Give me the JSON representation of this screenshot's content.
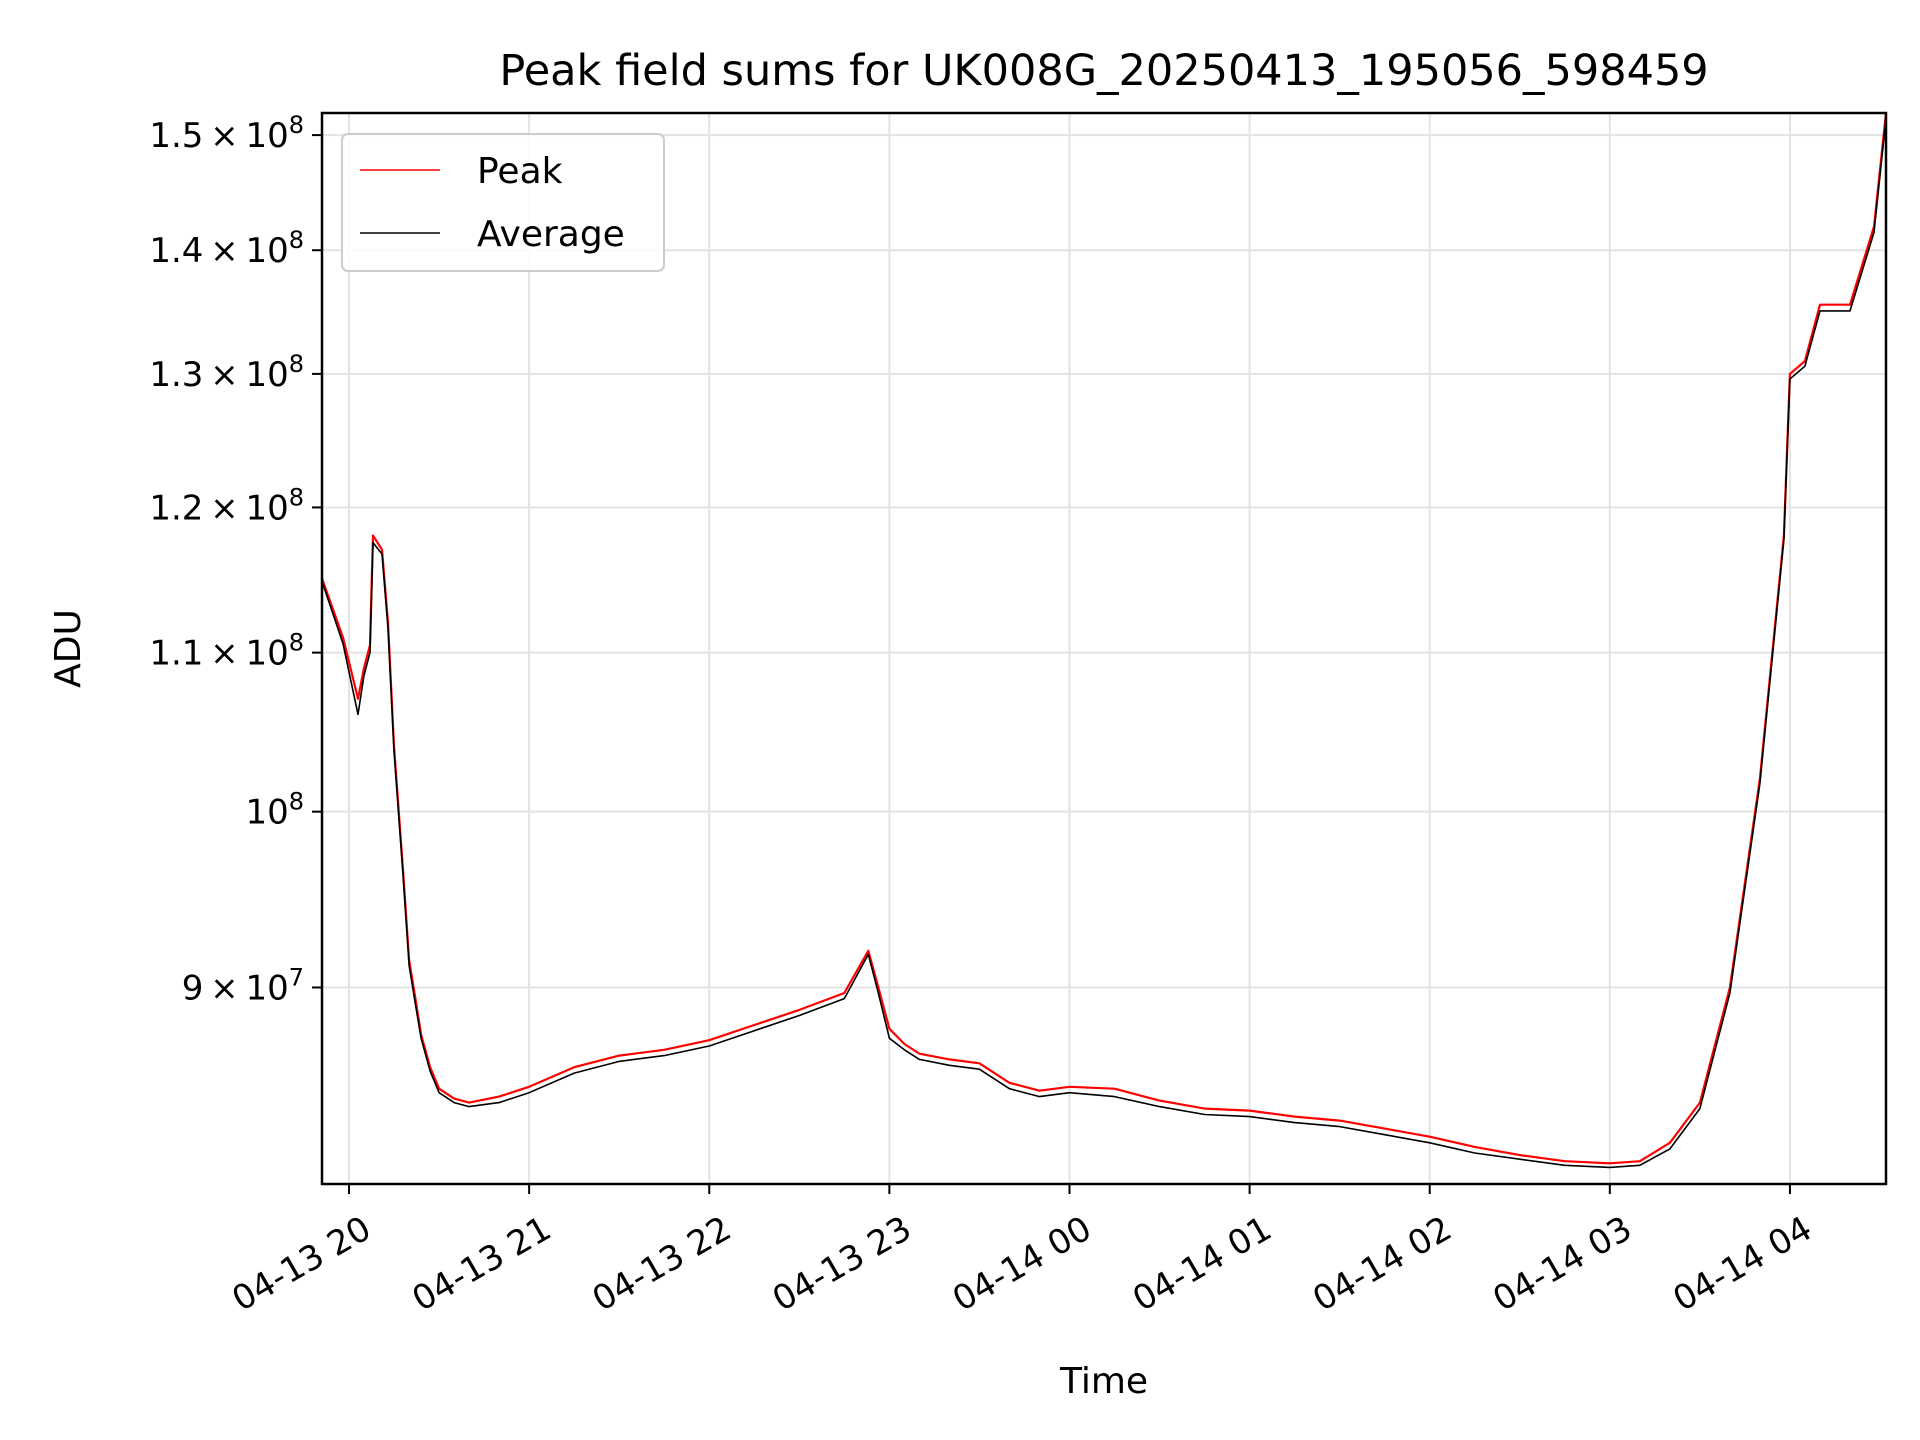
{
  "chart_data": {
    "type": "line",
    "title": "Peak field sums for UK008G_20250413_195056_598459",
    "xlabel": "Time",
    "ylabel": "ADU",
    "x_axis": {
      "kind": "time",
      "range": [
        "2025-04-13 19:51",
        "2025-04-14 04:32"
      ],
      "tick_labels": [
        "04-13 20",
        "04-13 21",
        "04-13 22",
        "04-13 23",
        "04-14 00",
        "04-14 01",
        "04-14 02",
        "04-14 03",
        "04-14 04"
      ],
      "ticks": [
        "2025-04-13 20:00",
        "2025-04-13 21:00",
        "2025-04-13 22:00",
        "2025-04-13 23:00",
        "2025-04-14 00:00",
        "2025-04-14 01:00",
        "2025-04-14 02:00",
        "2025-04-14 03:00",
        "2025-04-14 04:00"
      ]
    },
    "y_axis": {
      "scale": "log",
      "ylim": [
        80000000,
        152000000
      ],
      "ticks": [
        {
          "value": 90000000,
          "mantissa": "9",
          "times": "×",
          "base": "10",
          "exp": "7"
        },
        {
          "value": 100000000,
          "mantissa": "",
          "times": "",
          "base": "10",
          "exp": "8"
        },
        {
          "value": 110000000,
          "mantissa": "1.1",
          "times": "×",
          "base": "10",
          "exp": "8"
        },
        {
          "value": 120000000,
          "mantissa": "1.2",
          "times": "×",
          "base": "10",
          "exp": "8"
        },
        {
          "value": 130000000,
          "mantissa": "1.3",
          "times": "×",
          "base": "10",
          "exp": "8"
        },
        {
          "value": 140000000,
          "mantissa": "1.4",
          "times": "×",
          "base": "10",
          "exp": "8"
        },
        {
          "value": 150000000,
          "mantissa": "1.5",
          "times": "×",
          "base": "10",
          "exp": "8"
        }
      ]
    },
    "grid": true,
    "legend": {
      "placement": "top-left"
    },
    "series": [
      {
        "name": "Peak",
        "color": "#ff0000",
        "x": [
          "2025-04-13 19:51",
          "2025-04-13 19:58",
          "2025-04-13 20:03",
          "2025-04-13 20:05",
          "2025-04-13 20:07",
          "2025-04-13 20:08",
          "2025-04-13 20:11",
          "2025-04-13 20:13",
          "2025-04-13 20:15",
          "2025-04-13 20:18",
          "2025-04-13 20:20",
          "2025-04-13 20:22",
          "2025-04-13 20:24",
          "2025-04-13 20:27",
          "2025-04-13 20:30",
          "2025-04-13 20:35",
          "2025-04-13 20:40",
          "2025-04-13 20:50",
          "2025-04-13 21:00",
          "2025-04-13 21:15",
          "2025-04-13 21:30",
          "2025-04-13 21:45",
          "2025-04-13 22:00",
          "2025-04-13 22:15",
          "2025-04-13 22:30",
          "2025-04-13 22:45",
          "2025-04-13 22:53",
          "2025-04-13 22:56",
          "2025-04-13 23:00",
          "2025-04-13 23:05",
          "2025-04-13 23:10",
          "2025-04-13 23:20",
          "2025-04-13 23:30",
          "2025-04-13 23:40",
          "2025-04-13 23:50",
          "2025-04-14 00:00",
          "2025-04-14 00:15",
          "2025-04-14 00:30",
          "2025-04-14 00:45",
          "2025-04-14 01:00",
          "2025-04-14 01:15",
          "2025-04-14 01:30",
          "2025-04-14 01:45",
          "2025-04-14 02:00",
          "2025-04-14 02:15",
          "2025-04-14 02:30",
          "2025-04-14 02:45",
          "2025-04-14 03:00",
          "2025-04-14 03:10",
          "2025-04-14 03:20",
          "2025-04-14 03:30",
          "2025-04-14 03:40",
          "2025-04-14 03:50",
          "2025-04-14 03:58",
          "2025-04-14 04:00",
          "2025-04-14 04:05",
          "2025-04-14 04:10",
          "2025-04-14 04:20",
          "2025-04-14 04:28",
          "2025-04-14 04:32"
        ],
        "values": [
          115000000,
          111000000,
          107000000,
          109000000,
          110500000,
          118000000,
          117000000,
          112000000,
          104000000,
          96500000,
          91500000,
          89500000,
          87500000,
          85800000,
          84700000,
          84200000,
          84000000,
          84300000,
          84800000,
          85800000,
          86400000,
          86700000,
          87200000,
          88000000,
          88800000,
          89700000,
          92000000,
          90200000,
          87800000,
          87000000,
          86500000,
          86200000,
          86000000,
          85000000,
          84600000,
          84800000,
          84700000,
          84100000,
          83700000,
          83600000,
          83300000,
          83100000,
          82700000,
          82300000,
          81800000,
          81400000,
          81100000,
          81000000,
          81100000,
          82000000,
          84000000,
          90000000,
          102000000,
          118000000,
          130000000,
          131000000,
          135500000,
          135500000,
          142000000,
          152000000
        ]
      },
      {
        "name": "Average",
        "color": "#000000",
        "x": [
          "2025-04-13 19:51",
          "2025-04-13 19:58",
          "2025-04-13 20:03",
          "2025-04-13 20:05",
          "2025-04-13 20:07",
          "2025-04-13 20:08",
          "2025-04-13 20:11",
          "2025-04-13 20:13",
          "2025-04-13 20:15",
          "2025-04-13 20:18",
          "2025-04-13 20:20",
          "2025-04-13 20:22",
          "2025-04-13 20:24",
          "2025-04-13 20:27",
          "2025-04-13 20:30",
          "2025-04-13 20:35",
          "2025-04-13 20:40",
          "2025-04-13 20:50",
          "2025-04-13 21:00",
          "2025-04-13 21:15",
          "2025-04-13 21:30",
          "2025-04-13 21:45",
          "2025-04-13 22:00",
          "2025-04-13 22:15",
          "2025-04-13 22:30",
          "2025-04-13 22:45",
          "2025-04-13 22:53",
          "2025-04-13 22:56",
          "2025-04-13 23:00",
          "2025-04-13 23:05",
          "2025-04-13 23:10",
          "2025-04-13 23:20",
          "2025-04-13 23:30",
          "2025-04-13 23:40",
          "2025-04-13 23:50",
          "2025-04-14 00:00",
          "2025-04-14 00:15",
          "2025-04-14 00:30",
          "2025-04-14 00:45",
          "2025-04-14 01:00",
          "2025-04-14 01:15",
          "2025-04-14 01:30",
          "2025-04-14 01:45",
          "2025-04-14 02:00",
          "2025-04-14 02:15",
          "2025-04-14 02:30",
          "2025-04-14 02:45",
          "2025-04-14 03:00",
          "2025-04-14 03:10",
          "2025-04-14 03:20",
          "2025-04-14 03:30",
          "2025-04-14 03:40",
          "2025-04-14 03:50",
          "2025-04-14 03:58",
          "2025-04-14 04:00",
          "2025-04-14 04:05",
          "2025-04-14 04:10",
          "2025-04-14 04:20",
          "2025-04-14 04:28",
          "2025-04-14 04:32"
        ],
        "values": [
          114800000,
          110600000,
          106000000,
          108500000,
          110000000,
          117500000,
          116700000,
          111600000,
          103700000,
          96200000,
          91200000,
          89200000,
          87300000,
          85600000,
          84500000,
          84000000,
          83800000,
          84000000,
          84500000,
          85500000,
          86100000,
          86400000,
          86900000,
          87700000,
          88500000,
          89400000,
          91800000,
          89900000,
          87300000,
          86700000,
          86200000,
          85900000,
          85700000,
          84700000,
          84300000,
          84500000,
          84300000,
          83800000,
          83400000,
          83300000,
          83000000,
          82800000,
          82400000,
          82000000,
          81500000,
          81200000,
          80900000,
          80800000,
          80900000,
          81700000,
          83700000,
          89700000,
          101700000,
          117700000,
          129600000,
          130600000,
          135000000,
          135000000,
          141500000,
          151500000
        ]
      }
    ]
  }
}
